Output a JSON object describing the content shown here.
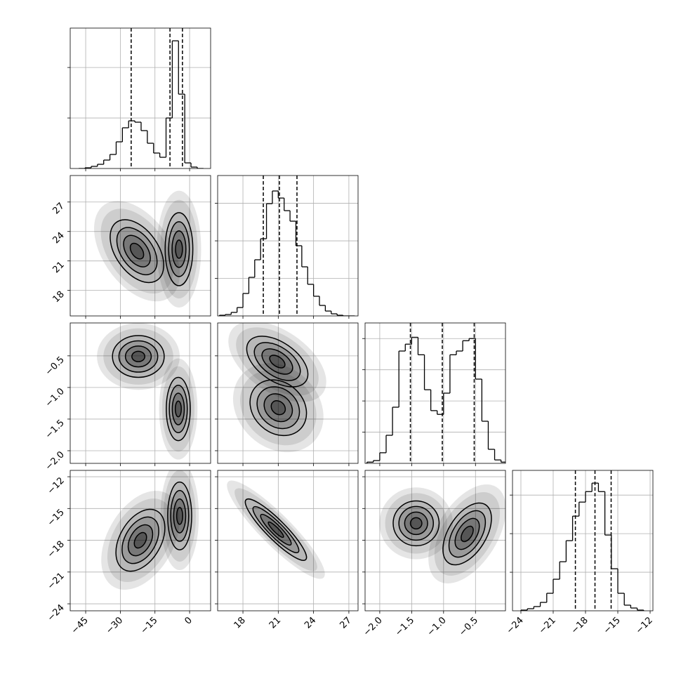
{
  "chart_data": {
    "type": "corner",
    "color": "#000000",
    "grid": true,
    "levels": [
      0.5,
      1,
      1.5,
      2
    ],
    "params": [
      {
        "xlim": [
          -51.7,
          9.1
        ],
        "ticks": [
          {
            "value": -45,
            "label": "−45"
          },
          {
            "value": -30,
            "label": "−30"
          },
          {
            "value": -15,
            "label": "−15"
          },
          0
        ]
      },
      {
        "xlim": [
          15.85,
          27.78
        ],
        "ylim": [
          15.4,
          29.7
        ],
        "ticks": [
          18,
          21,
          24,
          27
        ]
      },
      {
        "xlim": [
          -2.23,
          -0.03
        ],
        "ylim": [
          -2.2,
          0.02
        ],
        "ticks": [
          {
            "value": -2.0,
            "label": "−2.0"
          },
          {
            "value": -1.5,
            "label": "−1.5"
          },
          {
            "value": -1.0,
            "label": "−1.0"
          },
          {
            "value": -0.5,
            "label": "−0.5"
          }
        ]
      },
      {
        "xlim": [
          -24.78,
          -11.74
        ],
        "ylim": [
          -24.66,
          -11.4
        ],
        "ticks": [
          {
            "value": -24,
            "label": "−24"
          },
          {
            "value": -21,
            "label": "−21"
          },
          {
            "value": -18,
            "label": "−18"
          },
          {
            "value": -15,
            "label": "−15"
          },
          {
            "value": -12,
            "label": "−12"
          }
        ]
      }
    ],
    "histograms": [
      {
        "bins": [
          -48,
          -45.3,
          -42.6,
          -39.9,
          -37.2,
          -34.5,
          -31.8,
          -29.1,
          -26.4,
          -23.7,
          -21,
          -18.3,
          -15.6,
          -12.9,
          -10.2,
          -7.5,
          -4.8,
          -2.1,
          0.6,
          3.3,
          6
        ],
        "counts": [
          0,
          14,
          42,
          83,
          167,
          278,
          528,
          806,
          944,
          917,
          750,
          500,
          306,
          222,
          1000,
          2528,
          1472,
          111,
          28,
          0
        ],
        "ylim": [
          0,
          2780
        ],
        "yticks": [
          1000,
          2000
        ],
        "quantiles": [
          -25.3,
          -8.5,
          -3.1
        ]
      },
      {
        "bins": [
          16,
          16.5,
          17,
          17.5,
          18,
          18.5,
          19,
          19.5,
          20,
          20.5,
          21,
          21.5,
          22,
          22.5,
          23,
          23.5,
          24,
          24.5,
          25,
          25.5,
          26,
          26.5,
          27,
          27.5
        ],
        "counts": [
          9,
          19,
          47,
          112,
          299,
          514,
          748,
          1028,
          1495,
          1664,
          1570,
          1402,
          1262,
          935,
          654,
          421,
          262,
          140,
          65,
          28,
          9,
          0,
          0
        ],
        "ylim": [
          0,
          1870
        ],
        "yticks": [
          500,
          1000,
          1500
        ],
        "quantiles": [
          19.73,
          21.1,
          22.59
        ]
      },
      {
        "bins": [
          -2.2,
          -2.1,
          -2.0,
          -1.9,
          -1.8,
          -1.7,
          -1.6,
          -1.5,
          -1.4,
          -1.3,
          -1.2,
          -1.1,
          -1.0,
          -0.9,
          -0.8,
          -0.7,
          -0.6,
          -0.5,
          -0.4,
          -0.3,
          -0.2,
          -0.1,
          0
        ],
        "counts": [
          4,
          9,
          34,
          90,
          180,
          360,
          382,
          404,
          348,
          236,
          169,
          157,
          225,
          348,
          360,
          393,
          400,
          270,
          135,
          45,
          11,
          4
        ],
        "ylim": [
          0,
          450
        ],
        "yticks": [
          100,
          200,
          300,
          400
        ],
        "quantiles": [
          -1.52,
          -1.02,
          -0.52
        ]
      },
      {
        "bins": [
          -24,
          -23.4,
          -22.8,
          -22.2,
          -21.6,
          -21,
          -20.4,
          -19.8,
          -19.2,
          -18.6,
          -18,
          -17.4,
          -16.8,
          -16.2,
          -15.6,
          -15,
          -14.4,
          -13.8,
          -13.2,
          -12.6
        ],
        "counts": [
          9,
          27,
          55,
          109,
          227,
          409,
          636,
          909,
          1227,
          1409,
          1545,
          1655,
          1545,
          982,
          545,
          227,
          73,
          36,
          9
        ],
        "ylim": [
          0,
          1820
        ],
        "yticks": [
          500,
          1000,
          1500
        ],
        "quantiles": [
          -18.94,
          -17.12,
          -15.62
        ]
      }
    ],
    "panels": [
      {
        "x": 0,
        "y": 1,
        "blobs": [
          {
            "cx": -22.8,
            "cy": 22.0,
            "sx": 5.8,
            "sy": 1.6,
            "rho": -0.45
          },
          {
            "cx": -4.6,
            "cy": 22.2,
            "sx": 3.0,
            "sy": 1.86,
            "rho": 0
          }
        ]
      },
      {
        "x": 0,
        "y": 2,
        "blobs": [
          {
            "cx": -22.2,
            "cy": -0.51,
            "sx": 5.6,
            "sy": 0.165,
            "rho": 0
          },
          {
            "cx": -4.9,
            "cy": -1.34,
            "sx": 2.6,
            "sy": 0.25,
            "rho": 0
          }
        ]
      },
      {
        "x": 0,
        "y": 3,
        "blobs": [
          {
            "cx": -21.3,
            "cy": -18.0,
            "sx": 5.3,
            "sy": 1.46,
            "rho": 0.4
          },
          {
            "cx": -4.3,
            "cy": -15.7,
            "sx": 2.6,
            "sy": 1.6,
            "rho": 0
          }
        ]
      },
      {
        "x": 1,
        "y": 2,
        "blobs": [
          {
            "cx": 20.92,
            "cy": -0.59,
            "sx": 1.3,
            "sy": 0.2,
            "rho": -0.5
          },
          {
            "cx": 21.0,
            "cy": -1.32,
            "sx": 1.2,
            "sy": 0.22,
            "rho": -0.2
          }
        ]
      },
      {
        "x": 1,
        "y": 3,
        "blobs": [
          {
            "cx": 20.8,
            "cy": -17.0,
            "sx": 1.3,
            "sy": 1.45,
            "rho": -0.9
          }
        ]
      },
      {
        "x": 2,
        "y": 3,
        "blobs": [
          {
            "cx": -1.43,
            "cy": -16.4,
            "sx": 0.18,
            "sy": 1.06,
            "rho": 0
          },
          {
            "cx": -0.63,
            "cy": -17.4,
            "sx": 0.19,
            "sy": 1.46,
            "rho": 0.5
          }
        ]
      }
    ]
  }
}
